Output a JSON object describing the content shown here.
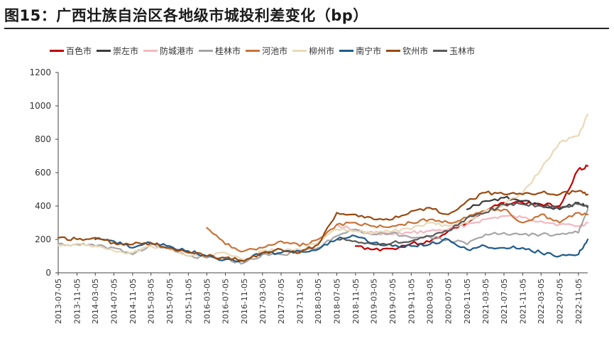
{
  "title": "图15：广西壮族自治区各地级市城投利差变化（bp）",
  "chart_data": {
    "type": "line",
    "title": "图15：广西壮族自治区各地级市城投利差变化（bp）",
    "xlabel": "",
    "ylabel": "",
    "ylim": [
      0,
      1200
    ],
    "yticks": [
      0,
      200,
      400,
      600,
      800,
      1000,
      1200
    ],
    "x_ticks": [
      "2013-07-05",
      "2013-11-05",
      "2014-03-05",
      "2014-07-05",
      "2014-11-05",
      "2015-03-05",
      "2015-07-05",
      "2015-11-05",
      "2016-03-05",
      "2016-07-05",
      "2016-11-05",
      "2017-03-05",
      "2017-07-05",
      "2017-11-05",
      "2018-03-05",
      "2018-07-05",
      "2018-11-05",
      "2019-03-05",
      "2019-07-05",
      "2019-11-05",
      "2020-03-05",
      "2020-07-05",
      "2020-11-05",
      "2021-03-05",
      "2021-07-05",
      "2021-11-05",
      "2022-03-05",
      "2022-07-05",
      "2022-11-05"
    ],
    "grid": false,
    "legend_position": "top",
    "x": [
      "2013-07-05",
      "2013-11-05",
      "2014-03-05",
      "2014-07-05",
      "2014-11-05",
      "2015-03-05",
      "2015-07-05",
      "2015-11-05",
      "2016-03-05",
      "2016-07-05",
      "2016-11-05",
      "2017-03-05",
      "2017-07-05",
      "2017-11-05",
      "2018-03-05",
      "2018-07-05",
      "2018-11-05",
      "2019-03-05",
      "2019-07-05",
      "2019-11-05",
      "2020-03-05",
      "2020-07-05",
      "2020-11-05",
      "2021-03-05",
      "2021-07-05",
      "2021-11-05",
      "2022-03-05",
      "2022-07-05",
      "2022-11-05",
      "2023-01-05"
    ],
    "series": [
      {
        "name": "百色市",
        "color": "#c00000",
        "values": [
          null,
          null,
          null,
          null,
          null,
          null,
          null,
          null,
          null,
          null,
          null,
          null,
          null,
          null,
          null,
          null,
          160,
          140,
          145,
          175,
          185,
          250,
          300,
          370,
          420,
          420,
          410,
          400,
          620,
          640
        ]
      },
      {
        "name": "崇左市",
        "color": "#3a3a3a",
        "values": [
          null,
          null,
          null,
          null,
          null,
          null,
          null,
          null,
          null,
          null,
          null,
          null,
          null,
          null,
          null,
          null,
          null,
          null,
          null,
          null,
          null,
          null,
          380,
          430,
          450,
          430,
          400,
          380,
          420,
          400
        ]
      },
      {
        "name": "防城港市",
        "color": "#f2b8c0",
        "values": [
          null,
          null,
          null,
          null,
          null,
          null,
          null,
          null,
          190,
          null,
          null,
          null,
          null,
          null,
          null,
          290,
          250,
          240,
          230,
          240,
          250,
          260,
          290,
          320,
          340,
          330,
          310,
          290,
          280,
          300
        ]
      },
      {
        "name": "桂林市",
        "color": "#a6a6a6",
        "values": [
          170,
          170,
          160,
          150,
          110,
          170,
          140,
          100,
          90,
          80,
          60,
          110,
          110,
          130,
          150,
          220,
          260,
          230,
          240,
          210,
          215,
          200,
          170,
          230,
          240,
          230,
          230,
          230,
          240,
          380
        ]
      },
      {
        "name": "河池市",
        "color": "#c8733a",
        "values": [
          null,
          null,
          null,
          null,
          null,
          null,
          null,
          null,
          270,
          170,
          130,
          150,
          190,
          160,
          200,
          290,
          300,
          280,
          280,
          300,
          320,
          300,
          330,
          370,
          380,
          300,
          350,
          300,
          360,
          350
        ]
      },
      {
        "name": "柳州市",
        "color": "#ead9b8",
        "values": [
          165,
          175,
          160,
          130,
          120,
          160,
          150,
          100,
          100,
          120,
          80,
          130,
          140,
          140,
          180,
          260,
          250,
          240,
          250,
          260,
          300,
          280,
          300,
          370,
          410,
          480,
          620,
          780,
          820,
          950
        ]
      },
      {
        "name": "南宁市",
        "color": "#1f5b8a",
        "values": [
          null,
          null,
          200,
          190,
          150,
          180,
          160,
          130,
          100,
          80,
          70,
          120,
          120,
          130,
          140,
          200,
          220,
          180,
          160,
          160,
          170,
          200,
          140,
          160,
          150,
          150,
          120,
          100,
          110,
          200
        ]
      },
      {
        "name": "钦州市",
        "color": "#9a4a10",
        "values": [
          210,
          200,
          210,
          180,
          170,
          180,
          150,
          120,
          100,
          90,
          70,
          120,
          140,
          120,
          170,
          360,
          350,
          320,
          320,
          370,
          390,
          350,
          430,
          480,
          470,
          470,
          480,
          470,
          490,
          470
        ]
      },
      {
        "name": "玉林市",
        "color": "#595959",
        "values": [
          null,
          null,
          null,
          null,
          null,
          null,
          null,
          null,
          null,
          null,
          null,
          null,
          null,
          null,
          null,
          200,
          190,
          170,
          180,
          190,
          220,
          250,
          330,
          360,
          410,
          410,
          400,
          390,
          410,
          390
        ]
      }
    ]
  }
}
